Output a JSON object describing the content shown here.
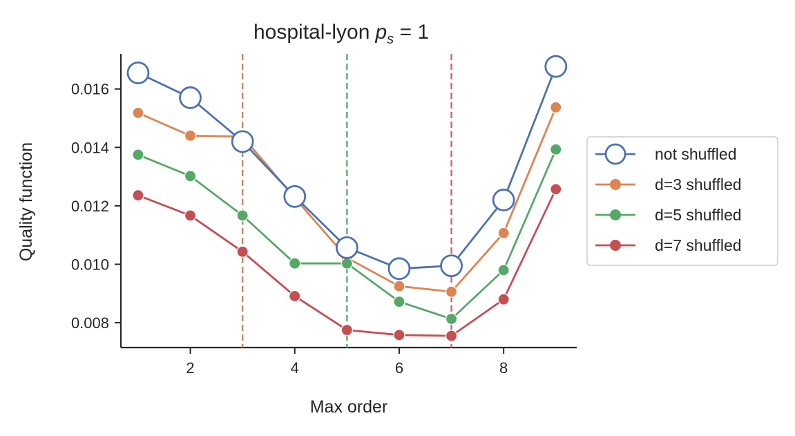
{
  "chart_data": {
    "type": "line",
    "title": "hospital-lyon",
    "title_math_symbol": "p",
    "title_math_subscript": "s",
    "title_math_rest": " = 1",
    "xlabel": "Max order",
    "ylabel": "Quality function",
    "xlim": [
      0.67,
      9.4
    ],
    "ylim": [
      0.00715,
      0.0172
    ],
    "xticks": [
      2,
      4,
      6,
      8
    ],
    "xtick_labels": [
      "2",
      "4",
      "6",
      "8"
    ],
    "yticks": [
      0.008,
      0.01,
      0.012,
      0.014,
      0.016
    ],
    "ytick_labels": [
      "0.008",
      "0.010",
      "0.012",
      "0.014",
      "0.016"
    ],
    "grid": false,
    "legend_placement": "outside-right",
    "x": [
      1,
      2,
      3,
      4,
      5,
      6,
      7,
      8,
      9
    ],
    "series": [
      {
        "name": "not shuffled",
        "color": "#4c72b0",
        "marker": "open-circle",
        "values": [
          0.01655,
          0.0157,
          0.0142,
          0.01232,
          0.01057,
          0.00985,
          0.00995,
          0.0122,
          0.01677
        ]
      },
      {
        "name": "d=3 shuffled",
        "color": "#dd8452",
        "marker": "filled-circle",
        "values": [
          0.01518,
          0.0144,
          0.01437,
          0.01227,
          0.01022,
          0.00925,
          0.00906,
          0.01107,
          0.01537
        ]
      },
      {
        "name": "d=5 shuffled",
        "color": "#55a868",
        "marker": "filled-circle",
        "values": [
          0.01375,
          0.01302,
          0.01167,
          0.01003,
          0.01003,
          0.00872,
          0.00813,
          0.0098,
          0.01393
        ]
      },
      {
        "name": "d=7 shuffled",
        "color": "#c44e52",
        "marker": "filled-circle",
        "values": [
          0.01236,
          0.01167,
          0.01043,
          0.00891,
          0.00775,
          0.00758,
          0.00755,
          0.0088,
          0.01257
        ]
      }
    ],
    "vlines": [
      {
        "x": 3,
        "color": "#c38a6b",
        "style": "dashed"
      },
      {
        "x": 5,
        "color": "#6aae7b",
        "style": "dashed"
      },
      {
        "x": 7,
        "color": "#cd6a6d",
        "style": "dashed"
      }
    ]
  }
}
